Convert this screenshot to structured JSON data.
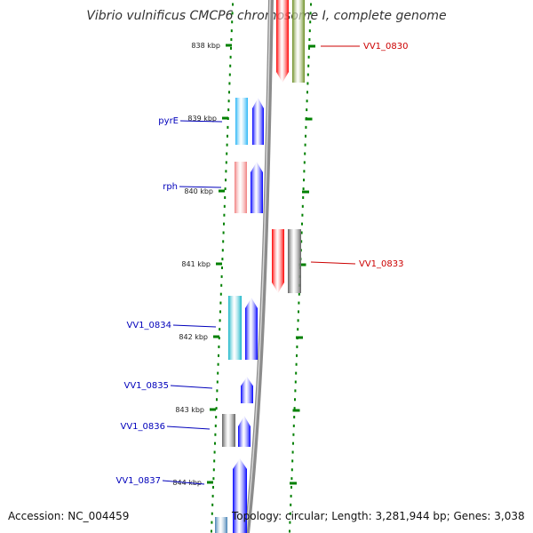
{
  "title": "Vibrio vulnificus CMCP6 chromosome I, complete genome",
  "accession_text": "Accession: NC_004459",
  "summary_text": "Topology: circular; Length: 3,281,944 bp; Genes: 3,038",
  "colors": {
    "forward_label": "#0000bb",
    "reverse_label": "#cc0000",
    "backbone": "#8c8c8c",
    "tick": "#008000"
  },
  "ticks": [
    {
      "label": "838 kbp"
    },
    {
      "label": "839 kbp"
    },
    {
      "label": "840 kbp"
    },
    {
      "label": "841 kbp"
    },
    {
      "label": "842 kbp"
    },
    {
      "label": "843 kbp"
    },
    {
      "label": "844 kbp"
    }
  ],
  "genes": [
    {
      "label": "VV1_0830",
      "strand": "reverse",
      "color": "#ff0000",
      "icon": "gene-arrow-icon"
    },
    {
      "label": "",
      "strand": "reverse",
      "color": "#6b8e23",
      "icon": "gene-block-icon"
    },
    {
      "label": "pyrE",
      "strand": "forward",
      "color": "#29b6f6",
      "icon": "gene-block-icon"
    },
    {
      "label": "",
      "strand": "forward",
      "color": "#0000ff",
      "icon": "gene-arrow-icon"
    },
    {
      "label": "rph",
      "strand": "forward",
      "color": "#f08080",
      "icon": "gene-block-icon"
    },
    {
      "label": "",
      "strand": "forward",
      "color": "#0000ff",
      "icon": "gene-arrow-icon"
    },
    {
      "label": "VV1_0833",
      "strand": "reverse",
      "color": "#ff0000",
      "icon": "gene-arrow-icon"
    },
    {
      "label": "",
      "strand": "reverse",
      "color": "#606060",
      "icon": "gene-block-icon"
    },
    {
      "label": "VV1_0834",
      "strand": "forward",
      "color": "#17b5c8",
      "icon": "gene-block-icon"
    },
    {
      "label": "",
      "strand": "forward",
      "color": "#0000ff",
      "icon": "gene-arrow-icon"
    },
    {
      "label": "VV1_0835",
      "strand": "forward",
      "color": "#0000ff",
      "icon": "gene-arrow-icon"
    },
    {
      "label": "VV1_0836",
      "strand": "forward",
      "color": "#606060",
      "icon": "gene-block-icon"
    },
    {
      "label": "",
      "strand": "forward",
      "color": "#0000ff",
      "icon": "gene-arrow-icon"
    },
    {
      "label": "VV1_0837",
      "strand": "forward",
      "color": "#0000ff",
      "icon": "gene-arrow-icon"
    },
    {
      "label": "",
      "strand": "forward",
      "color": "#4682b4",
      "icon": "gene-block-icon"
    }
  ]
}
